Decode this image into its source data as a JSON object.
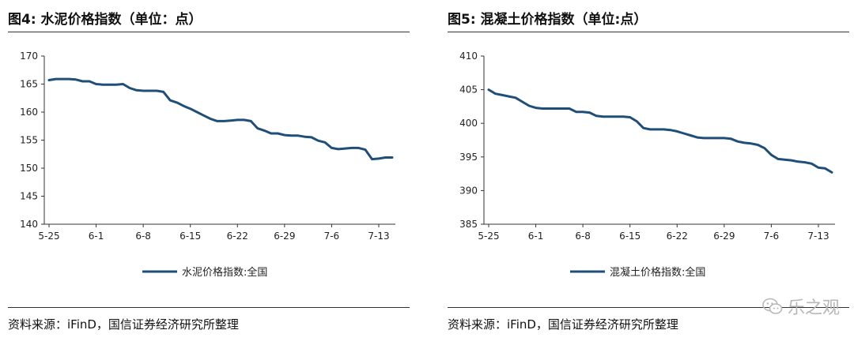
{
  "chart_data": [
    {
      "type": "line",
      "title": "图4: 水泥价格指数（单位：点）",
      "categories": [
        "5-25",
        "6-1",
        "6-8",
        "6-15",
        "6-22",
        "6-29",
        "7-6",
        "7-13"
      ],
      "ylim": [
        140,
        170
      ],
      "yticks": [
        140,
        145,
        150,
        155,
        160,
        165,
        170
      ],
      "series": [
        {
          "name": "水泥价格指数:全国",
          "color": "#1f4e79",
          "x": [
            0,
            1,
            2,
            3,
            4,
            5,
            6,
            7,
            8,
            9,
            10,
            11,
            12,
            13,
            14,
            15,
            16,
            17,
            18,
            19,
            20,
            21,
            22,
            23,
            24,
            25,
            26,
            27,
            28,
            29,
            30,
            31,
            32,
            33,
            34,
            35,
            36,
            37,
            38,
            39,
            40,
            41,
            42,
            43,
            44,
            45,
            46,
            47,
            48,
            49,
            50,
            51
          ],
          "values": [
            165.7,
            165.9,
            165.9,
            165.9,
            165.8,
            165.5,
            165.5,
            165.0,
            164.9,
            164.9,
            164.9,
            165.0,
            164.3,
            163.9,
            163.8,
            163.8,
            163.8,
            163.6,
            162.1,
            161.7,
            161.1,
            160.6,
            160.0,
            159.4,
            158.8,
            158.4,
            158.4,
            158.5,
            158.6,
            158.6,
            158.4,
            157.1,
            156.7,
            156.2,
            156.2,
            155.9,
            155.8,
            155.8,
            155.6,
            155.5,
            154.9,
            154.6,
            153.6,
            153.4,
            153.5,
            153.6,
            153.6,
            153.3,
            151.6,
            151.7,
            151.9,
            151.9
          ]
        }
      ]
    },
    {
      "type": "line",
      "title": "图5: 混凝土价格指数（单位:点）",
      "categories": [
        "5-25",
        "6-1",
        "6-8",
        "6-15",
        "6-22",
        "6-29",
        "7-6",
        "7-13"
      ],
      "ylim": [
        385,
        410
      ],
      "yticks": [
        385,
        390,
        395,
        400,
        405,
        410
      ],
      "series": [
        {
          "name": "混凝土价格指数:全国",
          "color": "#1f4e79",
          "x": [
            0,
            1,
            2,
            3,
            4,
            5,
            6,
            7,
            8,
            9,
            10,
            11,
            12,
            13,
            14,
            15,
            16,
            17,
            18,
            19,
            20,
            21,
            22,
            23,
            24,
            25,
            26,
            27,
            28,
            29,
            30,
            31,
            32,
            33,
            34,
            35,
            36,
            37,
            38,
            39,
            40,
            41,
            42,
            43,
            44,
            45,
            46,
            47,
            48,
            49,
            50,
            51
          ],
          "values": [
            405.0,
            404.4,
            404.2,
            404.0,
            403.8,
            403.2,
            402.6,
            402.3,
            402.2,
            402.2,
            402.2,
            402.2,
            402.2,
            401.7,
            401.7,
            401.6,
            401.1,
            401.0,
            401.0,
            401.0,
            401.0,
            400.9,
            400.3,
            399.3,
            399.1,
            399.1,
            399.1,
            399.0,
            398.8,
            398.5,
            398.2,
            397.9,
            397.8,
            397.8,
            397.8,
            397.8,
            397.7,
            397.3,
            397.1,
            397.0,
            396.8,
            396.3,
            395.3,
            394.7,
            394.6,
            394.5,
            394.3,
            394.2,
            394.0,
            393.4,
            393.3,
            392.7
          ]
        }
      ]
    }
  ],
  "panels": [
    {
      "title": "图4: 水泥价格指数（单位：点）",
      "legend": "水泥价格指数:全国",
      "source": "资料来源：iFinD，国信证券经济研究所整理"
    },
    {
      "title": "图5: 混凝土价格指数（单位:点）",
      "legend": "混凝土价格指数:全国",
      "source": "资料来源：iFinD，国信证券经济研究所整理"
    }
  ],
  "watermark": {
    "text": "乐之观",
    "icon": "wechat-icon"
  }
}
